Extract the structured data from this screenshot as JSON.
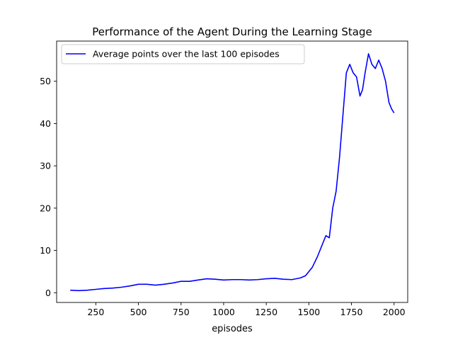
{
  "chart_data": {
    "type": "line",
    "title": "Performance of the Agent During the Learning Stage",
    "xlabel": "episodes",
    "ylabel": "",
    "xlim": [
      20,
      2080
    ],
    "ylim": [
      -2.3,
      59.5
    ],
    "xticks": [
      250,
      500,
      750,
      1000,
      1250,
      1500,
      1750,
      2000
    ],
    "yticks": [
      0,
      10,
      20,
      30,
      40,
      50
    ],
    "grid": false,
    "legend_position": "upper-left",
    "series": [
      {
        "name": "Average points over the last 100 episodes",
        "color": "#0000ff",
        "x": [
          100,
          150,
          200,
          250,
          300,
          350,
          400,
          450,
          500,
          550,
          600,
          650,
          700,
          750,
          800,
          850,
          900,
          950,
          1000,
          1050,
          1100,
          1150,
          1200,
          1250,
          1300,
          1350,
          1400,
          1450,
          1480,
          1500,
          1520,
          1550,
          1580,
          1600,
          1620,
          1640,
          1660,
          1680,
          1700,
          1720,
          1740,
          1760,
          1780,
          1800,
          1815,
          1830,
          1850,
          1870,
          1890,
          1910,
          1930,
          1950,
          1970,
          1985,
          2000
        ],
        "y": [
          0.6,
          0.5,
          0.6,
          0.8,
          1.0,
          1.1,
          1.3,
          1.6,
          2.0,
          2.0,
          1.8,
          2.0,
          2.3,
          2.7,
          2.7,
          3.0,
          3.3,
          3.2,
          3.0,
          3.1,
          3.1,
          3.0,
          3.1,
          3.3,
          3.4,
          3.2,
          3.1,
          3.5,
          4.0,
          5.0,
          6.0,
          8.5,
          11.5,
          13.5,
          13.0,
          20.0,
          24.0,
          32.0,
          42.0,
          52.0,
          54.0,
          52.0,
          51.0,
          46.5,
          48.0,
          52.0,
          56.5,
          54.0,
          53.0,
          55.0,
          53.0,
          50.0,
          45.0,
          43.5,
          42.5
        ]
      }
    ]
  }
}
